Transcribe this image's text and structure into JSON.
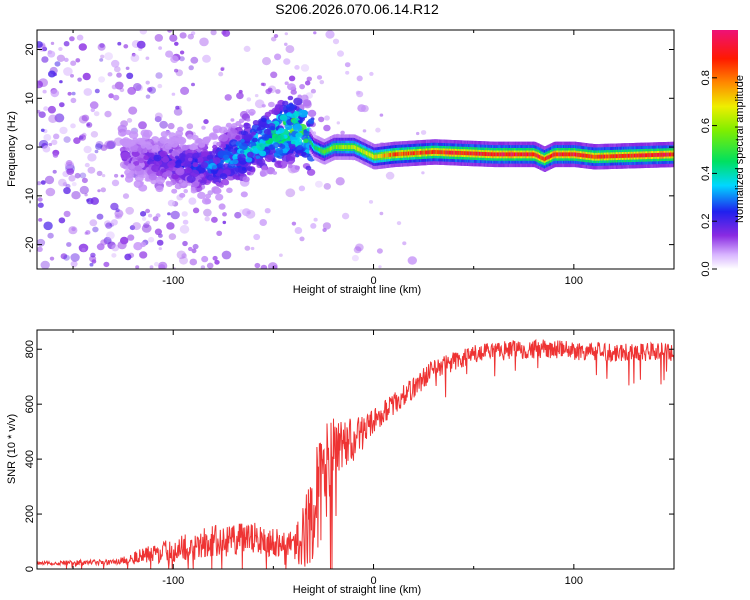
{
  "title": "S206.2026.070.06.14.R12",
  "chart_data": [
    {
      "type": "heatmap",
      "xlabel": "Height of straight line (km)",
      "ylabel": "Frequency (Hz)",
      "xlim": [
        -168,
        150
      ],
      "ylim": [
        -25,
        24
      ],
      "xticks": [
        -100,
        0,
        100
      ],
      "yticks": [
        -20,
        -10,
        0,
        10,
        20
      ],
      "colorbar": {
        "label": "Normalized spectral amplitude",
        "range": [
          0,
          1
        ],
        "ticks": [
          "0.0",
          "0.2",
          "0.4",
          "0.6",
          "0.8"
        ],
        "tick_values": [
          0.0,
          0.2,
          0.4,
          0.6,
          0.8
        ]
      },
      "ridge": {
        "x": [
          -125,
          -110,
          -90,
          -80,
          -70,
          -60,
          -50,
          -45,
          -40,
          -35,
          -30,
          -25,
          -20,
          -10,
          0,
          10,
          30,
          60,
          80,
          85,
          90,
          100,
          110,
          150
        ],
        "freq": [
          -2,
          -2.5,
          -4,
          -4,
          -2,
          0,
          2,
          3,
          4,
          3,
          0,
          -1,
          0,
          0,
          -2,
          -1.5,
          -1,
          -1.5,
          -1.5,
          -2.5,
          -1.5,
          -1.5,
          -2,
          -1.5
        ],
        "amplitude": [
          0.15,
          0.2,
          0.25,
          0.3,
          0.35,
          0.4,
          0.45,
          0.5,
          0.55,
          0.5,
          0.45,
          0.55,
          0.6,
          0.65,
          0.7,
          0.85,
          0.9,
          0.95,
          0.95,
          0.9,
          0.95,
          0.95,
          0.9,
          0.95
        ]
      }
    },
    {
      "type": "line",
      "xlabel": "Height of straight line (km)",
      "ylabel": "SNR (10 * v/v)",
      "xlim": [
        -168,
        150
      ],
      "ylim": [
        0,
        870
      ],
      "xticks": [
        -100,
        0,
        100
      ],
      "yticks": [
        0,
        200,
        400,
        600,
        800
      ],
      "series_color": "#ee3333",
      "envelope": {
        "x": [
          -168,
          -130,
          -120,
          -100,
          -80,
          -60,
          -40,
          -35,
          -30,
          -25,
          -20,
          -15,
          -10,
          -5,
          0,
          10,
          20,
          30,
          50,
          70,
          90,
          110,
          130,
          150
        ],
        "snr": [
          22,
          25,
          40,
          70,
          100,
          110,
          90,
          110,
          220,
          320,
          420,
          450,
          470,
          500,
          540,
          600,
          660,
          730,
          780,
          800,
          800,
          790,
          790,
          790
        ],
        "noise": [
          8,
          10,
          25,
          45,
          60,
          60,
          50,
          120,
          180,
          220,
          140,
          100,
          80,
          60,
          45,
          40,
          40,
          40,
          35,
          35,
          35,
          35,
          35,
          35
        ]
      }
    }
  ]
}
